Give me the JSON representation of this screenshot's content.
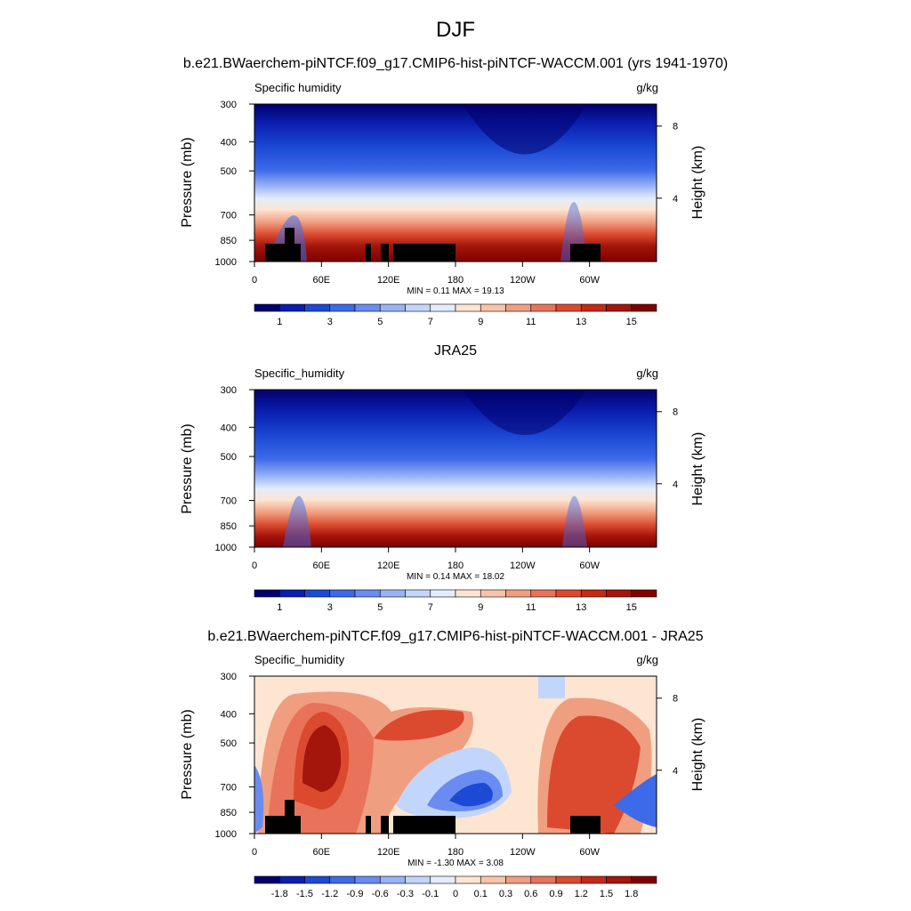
{
  "title": "DJF",
  "chart_data": [
    {
      "type": "heatmap",
      "title": "b.e21.BWaerchem-piNTCF.f09_g17.CMIP6-hist-piNTCF-WACCM.001 (yrs 1941-1970)",
      "left_label": "Specific humidity",
      "units": "g/kg",
      "ylabel": "Pressure (mb)",
      "ylabel_right": "Height (km)",
      "x_ticks": [
        "0",
        "60E",
        "120E",
        "180",
        "120W",
        "60W"
      ],
      "y_ticks": [
        "300",
        "400",
        "500",
        "700",
        "850",
        "1000"
      ],
      "y_right_ticks": [
        "8",
        "4"
      ],
      "stats": "MIN =  0.11  MAX =  19.13",
      "colorbar_labels": [
        "1",
        "3",
        "5",
        "7",
        "9",
        "11",
        "13",
        "15"
      ],
      "colorbar_colors": [
        "#02006e",
        "#0a1eb0",
        "#1c4ad6",
        "#3d6ae8",
        "#6a8cf0",
        "#98b2f6",
        "#c2d6fb",
        "#e4edfc",
        "#fde5d2",
        "#f7c4aa",
        "#f09e80",
        "#e8735a",
        "#db4a2e",
        "#c52a16",
        "#a4150b",
        "#800000"
      ],
      "min": 0.11,
      "max": 19.13
    },
    {
      "type": "heatmap",
      "title": "JRA25",
      "left_label": "Specific_humidity",
      "units": "g/kg",
      "ylabel": "Pressure (mb)",
      "ylabel_right": "Height (km)",
      "x_ticks": [
        "0",
        "60E",
        "120E",
        "180",
        "120W",
        "60W"
      ],
      "y_ticks": [
        "300",
        "400",
        "500",
        "700",
        "850",
        "1000"
      ],
      "y_right_ticks": [
        "8",
        "4"
      ],
      "stats": "MIN =  0.14  MAX =  18.02",
      "colorbar_labels": [
        "1",
        "3",
        "5",
        "7",
        "9",
        "11",
        "13",
        "15"
      ],
      "colorbar_colors": [
        "#02006e",
        "#0a1eb0",
        "#1c4ad6",
        "#3d6ae8",
        "#6a8cf0",
        "#98b2f6",
        "#c2d6fb",
        "#e4edfc",
        "#fde5d2",
        "#f7c4aa",
        "#f09e80",
        "#e8735a",
        "#db4a2e",
        "#c52a16",
        "#a4150b",
        "#800000"
      ],
      "min": 0.14,
      "max": 18.02
    },
    {
      "type": "heatmap",
      "title": "b.e21.BWaerchem-piNTCF.f09_g17.CMIP6-hist-piNTCF-WACCM.001 - JRA25",
      "left_label": "Specific_humidity",
      "units": "g/kg",
      "ylabel": "Pressure (mb)",
      "ylabel_right": "Height (km)",
      "x_ticks": [
        "0",
        "60E",
        "120E",
        "180",
        "120W",
        "60W"
      ],
      "y_ticks": [
        "300",
        "400",
        "500",
        "700",
        "850",
        "1000"
      ],
      "y_right_ticks": [
        "8",
        "4"
      ],
      "stats": "MIN = -1.30  MAX =   3.08",
      "colorbar_labels": [
        "-1.8",
        "-1.5",
        "-1.2",
        "-0.9",
        "-0.6",
        "-0.3",
        "-0.1",
        "0",
        "0.1",
        "0.3",
        "0.6",
        "0.9",
        "1.2",
        "1.5",
        "1.8"
      ],
      "colorbar_colors": [
        "#02006e",
        "#0a1eb0",
        "#1c4ad6",
        "#3d6ae8",
        "#6a8cf0",
        "#98b2f6",
        "#c2d6fb",
        "#e4edfc",
        "#fde5d2",
        "#f7c4aa",
        "#f09e80",
        "#e8735a",
        "#db4a2e",
        "#c52a16",
        "#a4150b",
        "#800000"
      ],
      "min": -1.3,
      "max": 3.08
    }
  ]
}
